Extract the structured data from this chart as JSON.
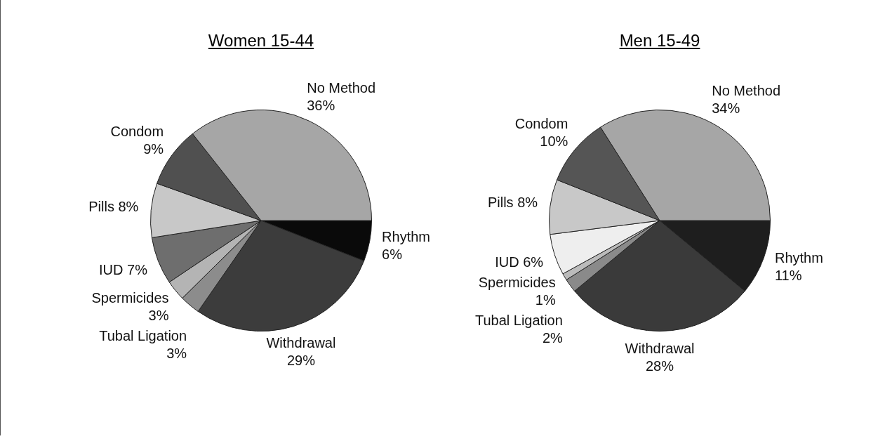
{
  "chart_data": [
    {
      "type": "pie",
      "title": "Women 15-44",
      "categories": [
        "Rhythm",
        "Withdrawal",
        "Tubal Ligation",
        "Spermicides",
        "IUD",
        "Pills",
        "Condom",
        "No Method"
      ],
      "values": [
        6,
        29,
        3,
        3,
        7,
        8,
        9,
        36
      ],
      "value_labels": [
        "6%",
        "29%",
        "3%",
        "3%",
        "7%",
        "8%",
        "9%",
        "36%"
      ],
      "colors": [
        "#0a0a0a",
        "#3c3c3c",
        "#8c8c8c",
        "#b4b4b4",
        "#6e6e6e",
        "#c8c8c8",
        "#505050",
        "#a6a6a6"
      ],
      "legend": false
    },
    {
      "type": "pie",
      "title": "Men 15-49",
      "categories": [
        "Rhythm",
        "Withdrawal",
        "Tubal Ligation",
        "Spermicides",
        "IUD",
        "Pills",
        "Condom",
        "No Method"
      ],
      "values": [
        11,
        28,
        2,
        1,
        6,
        8,
        10,
        34
      ],
      "value_labels": [
        "11%",
        "28%",
        "2%",
        "1%",
        "6%",
        "8%",
        "10%",
        "34%"
      ],
      "colors": [
        "#1e1e1e",
        "#3a3a3a",
        "#8a8a8a",
        "#bbbbbb",
        "#eeeeee",
        "#c8c8c8",
        "#555555",
        "#a6a6a6"
      ],
      "legend": false
    }
  ]
}
